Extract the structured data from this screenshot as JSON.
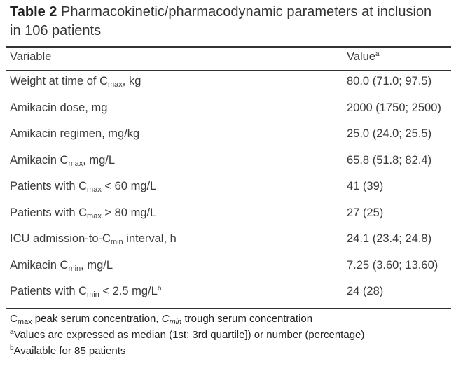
{
  "header": {
    "label": "Table 2",
    "title": "Pharmacokinetic/pharmacodynamic parameters at inclusion in 106 patients"
  },
  "table": {
    "columns": [
      [
        "Variable"
      ],
      [
        "Value",
        "a"
      ]
    ],
    "rows": [
      [
        [
          "Weight at time of C",
          "max",
          ", kg"
        ],
        "80.0 (71.0; 97.5)"
      ],
      [
        [
          "Amikacin dose, mg"
        ],
        "2000 (1750; 2500)"
      ],
      [
        [
          "Amikacin regimen, mg/kg"
        ],
        "25.0 (24.0; 25.5)"
      ],
      [
        [
          "Amikacin C",
          "max",
          ", mg/L"
        ],
        "65.8 (51.8; 82.4)"
      ],
      [
        [
          "Patients with C",
          "max",
          " < 60 mg/L"
        ],
        "41 (39)"
      ],
      [
        [
          "Patients with C",
          "max",
          " > 80 mg/L"
        ],
        "27 (25)"
      ],
      [
        [
          "ICU admission-to-C",
          "min",
          " interval, h"
        ],
        "24.1 (23.4; 24.8)"
      ],
      [
        [
          "Amikacin C",
          "min",
          ", mg/L"
        ],
        "7.25 (3.60; 13.60)"
      ],
      [
        [
          "Patients with C",
          "min",
          " < 2.5 mg/L",
          "b"
        ],
        "24 (28)"
      ]
    ]
  },
  "footnotes": [
    [
      "C",
      "max",
      " peak serum concentration, ",
      "C",
      "min",
      " trough serum concentration"
    ],
    [
      "a",
      "Values are expressed as median (1st; 3rd quartile]) or number (percentage)"
    ],
    [
      "b",
      "Available for 85 patients"
    ]
  ]
}
